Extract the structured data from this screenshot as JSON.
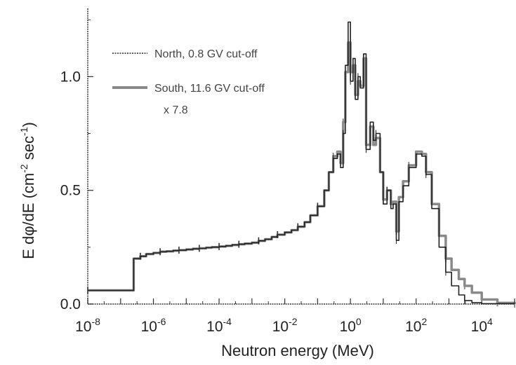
{
  "chart_data": {
    "type": "line",
    "title": "",
    "xlabel": "Neutron energy  (MeV)",
    "ylabel_parts": [
      "E dφ/dE (cm",
      "-2",
      " sec",
      "-1",
      ")"
    ],
    "x_scale": "log",
    "xlim": [
      1e-08,
      100000.0
    ],
    "ylim": [
      0.0,
      1.3
    ],
    "x_ticks": [
      {
        "mantissa": "10",
        "exponent": "-8"
      },
      {
        "mantissa": "10",
        "exponent": "-6"
      },
      {
        "mantissa": "10",
        "exponent": "-4"
      },
      {
        "mantissa": "10",
        "exponent": "-2"
      },
      {
        "mantissa": "10",
        "exponent": "0"
      },
      {
        "mantissa": "10",
        "exponent": "2"
      },
      {
        "mantissa": "10",
        "exponent": "4"
      }
    ],
    "y_ticks": [
      "0.0",
      "0.5",
      "1.0"
    ],
    "y_tick_values": [
      0.0,
      0.5,
      1.0
    ],
    "legend_position": "top-left",
    "legend_lines": [
      "North,   0.8 GV cut-off",
      "South, 11.6 GV cut-off",
      "x 7.8"
    ],
    "series": [
      {
        "name": "North,   0.8 GV cut-off",
        "color": "#222222",
        "style": "step",
        "points": [
          [
            1e-08,
            0.06
          ],
          [
            2.5e-07,
            0.06
          ],
          [
            2.5e-07,
            0.2
          ],
          [
            4e-07,
            0.21
          ],
          [
            6e-07,
            0.22
          ],
          [
            1e-06,
            0.225
          ],
          [
            1.6e-06,
            0.23
          ],
          [
            2.5e-06,
            0.232
          ],
          [
            4e-06,
            0.235
          ],
          [
            6e-06,
            0.237
          ],
          [
            1e-05,
            0.24
          ],
          [
            1.6e-05,
            0.243
          ],
          [
            2.5e-05,
            0.245
          ],
          [
            4e-05,
            0.248
          ],
          [
            6e-05,
            0.25
          ],
          [
            0.0001,
            0.253
          ],
          [
            0.00016,
            0.256
          ],
          [
            0.00025,
            0.26
          ],
          [
            0.0004,
            0.263
          ],
          [
            0.0006,
            0.266
          ],
          [
            0.001,
            0.27
          ],
          [
            0.0016,
            0.278
          ],
          [
            0.0025,
            0.285
          ],
          [
            0.004,
            0.295
          ],
          [
            0.006,
            0.305
          ],
          [
            0.01,
            0.315
          ],
          [
            0.016,
            0.325
          ],
          [
            0.025,
            0.34
          ],
          [
            0.04,
            0.36
          ],
          [
            0.06,
            0.39
          ],
          [
            0.1,
            0.43
          ],
          [
            0.16,
            0.5
          ],
          [
            0.22,
            0.58
          ],
          [
            0.3,
            0.64
          ],
          [
            0.4,
            0.66
          ],
          [
            0.5,
            0.6
          ],
          [
            0.6,
            0.75
          ],
          [
            0.7,
            1.05
          ],
          [
            0.85,
            1.24
          ],
          [
            1.0,
            0.98
          ],
          [
            1.2,
            1.08
          ],
          [
            1.4,
            0.9
          ],
          [
            1.7,
            1.0
          ],
          [
            2.0,
            0.95
          ],
          [
            2.5,
            1.1
          ],
          [
            3.0,
            0.68
          ],
          [
            4.0,
            0.8
          ],
          [
            5.0,
            0.72
          ],
          [
            6.0,
            0.75
          ],
          [
            8.0,
            0.58
          ],
          [
            10,
            0.44
          ],
          [
            13,
            0.5
          ],
          [
            17,
            0.42
          ],
          [
            20,
            0.44
          ],
          [
            25,
            0.28
          ],
          [
            30,
            0.45
          ],
          [
            40,
            0.52
          ],
          [
            60,
            0.6
          ],
          [
            100,
            0.66
          ],
          [
            150,
            0.65
          ],
          [
            200,
            0.57
          ],
          [
            300,
            0.42
          ],
          [
            500,
            0.25
          ],
          [
            800,
            0.14
          ],
          [
            1200,
            0.08
          ],
          [
            2000,
            0.04
          ],
          [
            3000,
            0.015
          ],
          [
            5000,
            0.006
          ],
          [
            10000,
            0.002
          ],
          [
            100000,
            0.0
          ]
        ]
      },
      {
        "name": "South, 11.6 GV cut-off",
        "color": "#8a8a8a",
        "style": "step",
        "points": [
          [
            1e-08,
            0.06
          ],
          [
            2.5e-07,
            0.06
          ],
          [
            2.5e-07,
            0.2
          ],
          [
            4e-07,
            0.21
          ],
          [
            6e-07,
            0.22
          ],
          [
            1e-06,
            0.225
          ],
          [
            1.6e-06,
            0.23
          ],
          [
            2.5e-06,
            0.232
          ],
          [
            4e-06,
            0.235
          ],
          [
            6e-06,
            0.237
          ],
          [
            1e-05,
            0.24
          ],
          [
            1.6e-05,
            0.243
          ],
          [
            2.5e-05,
            0.245
          ],
          [
            4e-05,
            0.248
          ],
          [
            6e-05,
            0.25
          ],
          [
            0.0001,
            0.253
          ],
          [
            0.00016,
            0.256
          ],
          [
            0.00025,
            0.26
          ],
          [
            0.0004,
            0.263
          ],
          [
            0.0006,
            0.266
          ],
          [
            0.001,
            0.27
          ],
          [
            0.0016,
            0.278
          ],
          [
            0.0025,
            0.285
          ],
          [
            0.004,
            0.295
          ],
          [
            0.006,
            0.305
          ],
          [
            0.01,
            0.315
          ],
          [
            0.016,
            0.325
          ],
          [
            0.025,
            0.34
          ],
          [
            0.04,
            0.36
          ],
          [
            0.06,
            0.39
          ],
          [
            0.1,
            0.43
          ],
          [
            0.16,
            0.5
          ],
          [
            0.22,
            0.58
          ],
          [
            0.3,
            0.65
          ],
          [
            0.4,
            0.67
          ],
          [
            0.5,
            0.62
          ],
          [
            0.6,
            0.8
          ],
          [
            0.7,
            1.02
          ],
          [
            0.85,
            1.15
          ],
          [
            1.0,
            1.02
          ],
          [
            1.2,
            1.05
          ],
          [
            1.4,
            0.92
          ],
          [
            1.7,
            0.98
          ],
          [
            2.0,
            0.96
          ],
          [
            2.5,
            1.08
          ],
          [
            3.0,
            0.7
          ],
          [
            4.0,
            0.78
          ],
          [
            5.0,
            0.7
          ],
          [
            6.0,
            0.73
          ],
          [
            8.0,
            0.58
          ],
          [
            10,
            0.46
          ],
          [
            13,
            0.5
          ],
          [
            17,
            0.44
          ],
          [
            20,
            0.45
          ],
          [
            25,
            0.32
          ],
          [
            30,
            0.47
          ],
          [
            40,
            0.54
          ],
          [
            60,
            0.61
          ],
          [
            100,
            0.67
          ],
          [
            150,
            0.66
          ],
          [
            200,
            0.58
          ],
          [
            300,
            0.44
          ],
          [
            500,
            0.3
          ],
          [
            800,
            0.2
          ],
          [
            1200,
            0.15
          ],
          [
            2000,
            0.11
          ],
          [
            3000,
            0.08
          ],
          [
            5000,
            0.05
          ],
          [
            10000,
            0.02
          ],
          [
            30000,
            0.005
          ],
          [
            100000,
            0.0
          ]
        ]
      }
    ]
  }
}
